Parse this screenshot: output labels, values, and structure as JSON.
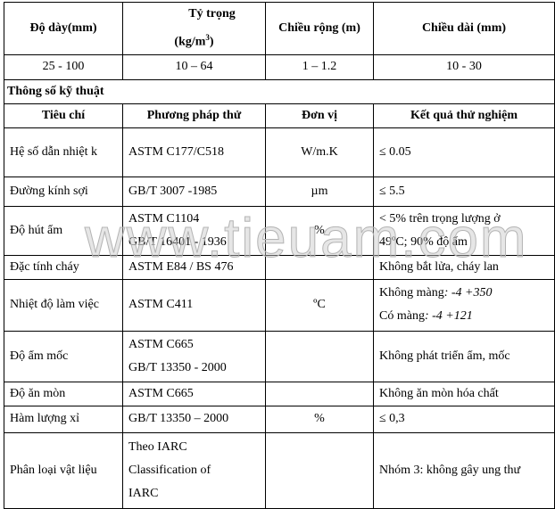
{
  "top_header": [
    "Độ dày(mm)",
    "Tỷ trọng",
    "(kg/m",
    "3",
    ")",
    "Chiều rộng (m)",
    "Chiều dài (mm)"
  ],
  "top_values": [
    "25 - 100",
    "10 – 64",
    "1 – 1.2",
    "10 - 30"
  ],
  "section_title": "Thông số kỹ thuật",
  "spec_header": [
    "Tiêu chí",
    "Phương pháp thử",
    "Đơn vị",
    "Kết quả thử nghiệm"
  ],
  "rows": [
    {
      "criterion": "Hệ số dẫn nhiệt k",
      "method": [
        "ASTM C177/C518"
      ],
      "unit": "W/m.K",
      "result": [
        "≤ 0.05"
      ]
    },
    {
      "criterion": "Đường kính sợi",
      "method": [
        "GB/T 3007 -1985"
      ],
      "unit": "µm",
      "result": [
        "≤ 5.5"
      ]
    },
    {
      "criterion": "Độ hút ẩm",
      "method": [
        "ASTM C1104",
        "GB/T 16401 - 1936"
      ],
      "unit": "%",
      "result": [
        "< 5% trên trọng lượng ở",
        "49ºC; 90% độ ẩm"
      ]
    },
    {
      "criterion": "Đặc tính cháy",
      "method": [
        "ASTM E84 / BS 476"
      ],
      "unit": "",
      "result": [
        "Không bắt lửa, cháy lan"
      ]
    },
    {
      "criterion": "Nhiệt độ làm việc",
      "method": [
        "ASTM C411"
      ],
      "unit": "ºC",
      "result": [
        "Không màng",
        ": -4 +350",
        "Có màng",
        ": -4 +121"
      ]
    },
    {
      "criterion": "Độ ẩm mốc",
      "method": [
        "ASTM C665",
        "GB/T 13350 - 2000"
      ],
      "unit": "",
      "result": [
        "Không phát triển ẩm, mốc"
      ]
    },
    {
      "criterion": "Độ ăn mòn",
      "method": [
        "ASTM C665"
      ],
      "unit": "",
      "result": [
        "Không ăn mòn hóa chất"
      ]
    },
    {
      "criterion": "Hàm lượng xỉ",
      "method": [
        "GB/T 13350 – 2000"
      ],
      "unit": "%",
      "result": [
        "≤ 0,3"
      ]
    },
    {
      "criterion": "Phân loại vật liệu",
      "method": [
        "Theo IARC",
        "Classification of",
        "IARC"
      ],
      "unit": "",
      "result": [
        "Nhóm 3: không gây ung thư"
      ]
    }
  ],
  "watermark": "www.tieuam.com"
}
